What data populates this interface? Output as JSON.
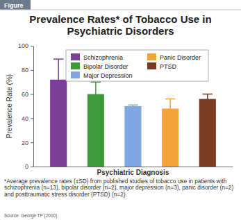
{
  "chart_data": {
    "type": "bar",
    "figure_label": "Figure",
    "title": "Prevalence Rates* of Tobacco Use in Psychiatric Disorders",
    "x_label": "Psychiatric Diagnosis",
    "y_label": "Prevalence Rate (%)",
    "categories": [
      null
    ],
    "series": [
      {
        "name": "Schizophrenia",
        "color": "#7b3f98",
        "values": [
          72
        ],
        "error": [
          17
        ]
      },
      {
        "name": "Bipolar Disorder",
        "color": "#3c9a3a",
        "values": [
          60
        ],
        "error": [
          10
        ]
      },
      {
        "name": "Major Depression",
        "color": "#7fa7e0",
        "values": [
          50
        ],
        "error": [
          1
        ]
      },
      {
        "name": "Panic Disorder",
        "color": "#f2a43a",
        "values": [
          48
        ],
        "error": [
          8
        ]
      },
      {
        "name": "PTSD",
        "color": "#7b3a22",
        "values": [
          56
        ],
        "error": [
          4
        ]
      }
    ],
    "ylim": [
      0,
      100
    ],
    "yticks": [
      0,
      20,
      40,
      60,
      80,
      100
    ],
    "grid": false,
    "legend": "top",
    "tick_labels": "y",
    "footnote": "*Average prevalence rates (±SD) from published studies of tobacco use in patients with schizophrenia (n=13), bipolar disorder (n=2), major depression (n=3), panic disorder (n=2) and posttraumatic stress disorder (PTSD) (n=2).",
    "source": "Source: George TP (2000)"
  }
}
